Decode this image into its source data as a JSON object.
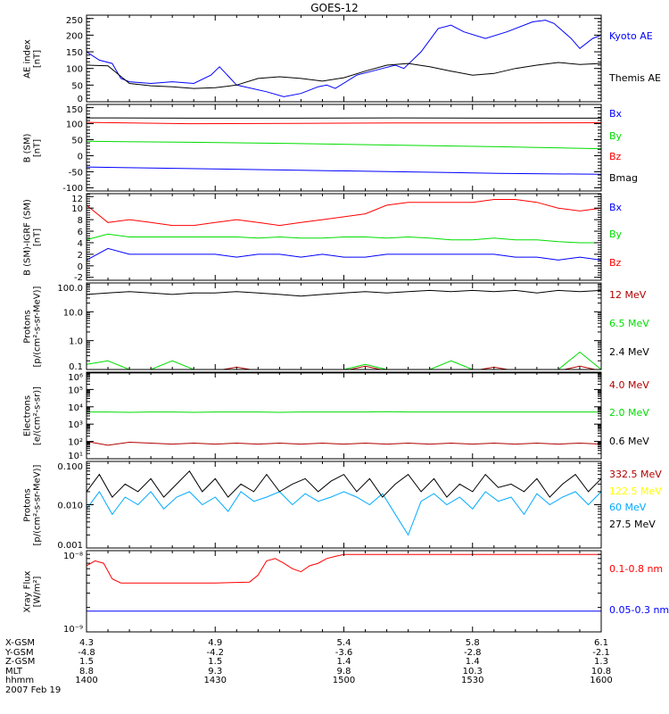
{
  "title": "GOES-12",
  "panels": [
    {
      "ylabel": [
        "AE index",
        "[nT]"
      ],
      "scale": "lin",
      "ylim": [
        0,
        260
      ],
      "ticks": [
        0,
        50,
        100,
        150,
        200,
        250
      ],
      "tick_labels": [
        "0",
        "50",
        "100",
        "150",
        "200",
        "250"
      ],
      "series": [
        {
          "name": "Kyoto AE",
          "color": "#0000ff",
          "x": [
            0,
            3,
            6,
            8,
            10,
            15,
            20,
            25,
            29,
            31,
            35,
            42,
            46,
            50,
            54,
            56,
            58,
            63,
            69,
            72,
            74,
            78,
            82,
            85,
            88,
            93,
            98,
            104,
            107,
            109,
            113,
            115,
            118,
            120
          ],
          "y": [
            150,
            125,
            115,
            70,
            60,
            55,
            60,
            55,
            80,
            105,
            50,
            30,
            15,
            25,
            45,
            50,
            40,
            80,
            100,
            110,
            100,
            150,
            220,
            230,
            210,
            190,
            210,
            240,
            245,
            235,
            190,
            160,
            190,
            200
          ]
        },
        {
          "name": "Themis AE",
          "color": "#000000",
          "y": [
            110,
            108,
            55,
            48,
            45,
            40,
            42,
            50,
            70,
            75,
            70,
            62,
            72,
            92,
            110,
            115,
            105,
            92,
            80,
            85,
            100,
            110,
            118,
            112,
            115
          ]
        }
      ]
    },
    {
      "ylabel": [
        "B (SM)",
        "[nT]"
      ],
      "scale": "lin",
      "ylim": [
        -110,
        160
      ],
      "ticks": [
        -100,
        -50,
        0,
        50,
        100,
        150
      ],
      "tick_labels": [
        "-100",
        "-50",
        "0",
        "50",
        "100",
        "150"
      ],
      "series": [
        {
          "name": "Bx",
          "color": "#0000ff",
          "y": [
            -35,
            -40,
            -45,
            -50,
            -55,
            -58
          ]
        },
        {
          "name": "By",
          "color": "#00dd00",
          "y": [
            45,
            42,
            38,
            33,
            28,
            22
          ]
        },
        {
          "name": "Bz",
          "color": "#ff0000",
          "y": [
            104,
            100,
            101,
            102,
            102,
            103
          ]
        },
        {
          "name": "Bmag",
          "color": "#000000",
          "y": [
            118,
            117,
            117,
            118,
            117,
            117
          ]
        }
      ]
    },
    {
      "ylabel": [
        "B (SM)-IGRF (SM)",
        "[nT]"
      ],
      "scale": "lin",
      "ylim": [
        -2.5,
        12.5
      ],
      "ticks": [
        -2,
        0,
        2,
        4,
        6,
        8,
        10,
        12
      ],
      "tick_labels": [
        "-2",
        "0",
        "2",
        "4",
        "6",
        "8",
        "10",
        "12"
      ],
      "series": [
        {
          "name": "Bx",
          "color": "#0000ff",
          "y": [
            1,
            3,
            2,
            2,
            2,
            2,
            2,
            1.5,
            2,
            2,
            1.5,
            2,
            1.5,
            1.5,
            2,
            2,
            2,
            2,
            2,
            2,
            1.5,
            1.5,
            1,
            1.5,
            1
          ]
        },
        {
          "name": "By",
          "color": "#00dd00",
          "y": [
            4.5,
            5.5,
            5,
            5,
            5,
            5,
            5,
            5,
            4.8,
            5,
            4.8,
            4.8,
            5,
            5,
            4.8,
            5,
            4.8,
            4.5,
            4.5,
            4.8,
            4.5,
            4.5,
            4.2,
            4,
            4
          ]
        },
        {
          "name": "Bz",
          "color": "#ff0000",
          "y": [
            10.5,
            7.5,
            8,
            7.5,
            7,
            7,
            7.5,
            8,
            7.5,
            7,
            7.5,
            8,
            8.5,
            9,
            10.5,
            11,
            11,
            11,
            11,
            11.5,
            11.5,
            11,
            10,
            9.5,
            10
          ]
        }
      ]
    },
    {
      "ylabel": [
        "Protons",
        "[p/(cm²-s-sr-MeV)]"
      ],
      "scale": "log",
      "ylim": [
        0.1,
        100
      ],
      "ticks": [
        0.1,
        1,
        10,
        100
      ],
      "tick_labels": [
        "0.1",
        "1.0",
        "10.0",
        "100.0"
      ],
      "series": [
        {
          "name": "12 MeV",
          "color": "#b00000",
          "y": [
            0.09,
            0.09,
            0.09,
            0.09,
            0.09,
            0.09,
            0.09,
            0.12,
            0.09,
            0.09,
            0.09,
            0.09,
            0.09,
            0.13,
            0.09,
            0.09,
            0.09,
            0.09,
            0.09,
            0.12,
            0.09,
            0.09,
            0.09,
            0.13,
            0.09
          ]
        },
        {
          "name": "6.5 MeV",
          "color": "#00dd00",
          "y": [
            0.15,
            0.2,
            0.1,
            0.1,
            0.2,
            0.1,
            0.1,
            0.1,
            0.1,
            0.1,
            0.1,
            0.1,
            0.1,
            0.15,
            0.1,
            0.1,
            0.1,
            0.2,
            0.1,
            0.1,
            0.1,
            0.1,
            0.1,
            0.4,
            0.1
          ]
        },
        {
          "name": "2.4 MeV",
          "color": "#000000",
          "y": [
            40,
            45,
            50,
            45,
            40,
            45,
            45,
            50,
            45,
            40,
            35,
            40,
            45,
            50,
            45,
            50,
            55,
            50,
            55,
            50,
            55,
            45,
            55,
            50,
            55
          ]
        }
      ]
    },
    {
      "ylabel": [
        "Electrons",
        "[e/(cm²-s-sr)]"
      ],
      "scale": "log",
      "ylim": [
        10,
        1000000
      ],
      "ticks": [
        10,
        100,
        1000,
        10000,
        100000,
        1000000
      ],
      "tick_labels": [
        "10¹",
        "10²",
        "10³",
        "10⁴",
        "10⁵",
        "10⁶"
      ],
      "series": [
        {
          "name": "4.0 MeV",
          "color": "#b00000",
          "y": [
            100,
            60,
            90,
            80,
            70,
            80,
            70,
            80,
            70,
            80,
            70,
            80,
            70,
            80,
            70,
            80,
            70,
            80,
            70,
            80,
            70,
            80,
            70,
            80,
            70
          ]
        },
        {
          "name": "2.0 MeV",
          "color": "#00dd00",
          "y": [
            5000,
            5000,
            4800,
            5000,
            5000,
            4800,
            5000,
            5000,
            5000,
            4800,
            5000,
            5000,
            5000,
            5000,
            5200,
            5000,
            5000,
            5000,
            5000,
            5000,
            5000,
            5000,
            5000,
            5000,
            5000
          ]
        },
        {
          "name": "0.6 MeV",
          "color": "#000000",
          "y": [
            900000,
            900000,
            900000,
            900000,
            900000,
            900000
          ]
        }
      ]
    },
    {
      "ylabel": [
        "Protons",
        "[p/(cm²-s-sr-MeV)]"
      ],
      "scale": "log",
      "ylim": [
        0.001,
        0.1
      ],
      "ticks": [
        0.001,
        0.01,
        0.1
      ],
      "tick_labels": [
        "0.001",
        "0.010",
        "0.100"
      ],
      "series": [
        {
          "name": "332.5 MeV",
          "color": "#b00000",
          "y": []
        },
        {
          "name": "122.5 MeV",
          "color": "#ffff00",
          "y": []
        },
        {
          "name": "60 MeV",
          "color": "#00aaff",
          "y": [
            0.008,
            0.02,
            0.006,
            0.015,
            0.01,
            0.02,
            0.008,
            0.015,
            0.02,
            0.01,
            0.015,
            0.007,
            0.02,
            0.012,
            0.015,
            0.02,
            0.01,
            0.018,
            0.012,
            0.015,
            0.02,
            0.015,
            0.01,
            0.018,
            0.006,
            0.002,
            0.012,
            0.018,
            0.01,
            0.015,
            0.008,
            0.02,
            0.012,
            0.015,
            0.006,
            0.018,
            0.01,
            0.015,
            0.02,
            0.01,
            0.02
          ]
        },
        {
          "name": "27.5 MeV",
          "color": "#000000",
          "y": [
            0.02,
            0.05,
            0.015,
            0.03,
            0.02,
            0.04,
            0.015,
            0.03,
            0.06,
            0.02,
            0.04,
            0.015,
            0.03,
            0.02,
            0.05,
            0.02,
            0.03,
            0.04,
            0.02,
            0.035,
            0.05,
            0.02,
            0.04,
            0.015,
            0.03,
            0.05,
            0.02,
            0.04,
            0.015,
            0.03,
            0.02,
            0.05,
            0.025,
            0.03,
            0.02,
            0.04,
            0.015,
            0.03,
            0.05,
            0.02,
            0.04
          ]
        }
      ]
    },
    {
      "ylabel": [
        "Xray Flux",
        "[W/m²]"
      ],
      "scale": "log",
      "ylim": [
        1e-09,
        1e-08
      ],
      "ticks": [
        1e-09,
        1e-08
      ],
      "tick_labels": [
        "10⁻⁹",
        "10⁻⁸"
      ],
      "series": [
        {
          "name": "0.1-0.8 nm",
          "color": "#ff0000",
          "x": [
            0,
            2,
            4,
            6,
            8,
            10,
            20,
            30,
            38,
            40,
            42,
            44,
            46,
            48,
            50,
            52,
            54,
            56,
            58,
            60,
            120
          ],
          "y": [
            6.5e-09,
            7.5e-09,
            7e-09,
            4.5e-09,
            4e-09,
            4e-09,
            4e-09,
            4e-09,
            4.1e-09,
            5e-09,
            7.5e-09,
            8e-09,
            7e-09,
            6e-09,
            5.5e-09,
            6.5e-09,
            7e-09,
            8e-09,
            8.5e-09,
            9e-09,
            9e-09
          ]
        },
        {
          "name": "0.05-0.3 nm",
          "color": "#0000ff",
          "y": [
            1.8e-09,
            1.8e-09,
            1.8e-09
          ]
        }
      ]
    }
  ],
  "xaxis": {
    "rows": [
      {
        "label": "X-GSM",
        "values": [
          "4.3",
          "4.9",
          "5.4",
          "5.8",
          "6.1"
        ]
      },
      {
        "label": "Y-GSM",
        "values": [
          "-4.8",
          "-4.2",
          "-3.6",
          "-2.8",
          "-2.1"
        ]
      },
      {
        "label": "Z-GSM",
        "values": [
          "1.5",
          "1.5",
          "1.4",
          "1.4",
          "1.3"
        ]
      },
      {
        "label": "MLT",
        "values": [
          "8.8",
          "9.3",
          "9.8",
          "10.3",
          "10.8"
        ]
      },
      {
        "label": "hhmm",
        "values": [
          "1400",
          "1430",
          "1500",
          "1530",
          "1600"
        ]
      }
    ],
    "date": "2007 Feb 19",
    "xlim_minutes": [
      0,
      120
    ]
  },
  "chart_data": {
    "type": "line",
    "title": "GOES-12",
    "xlabel": "hhmm",
    "x_ticks": [
      "1400",
      "1430",
      "1500",
      "1530",
      "1600"
    ]
  }
}
